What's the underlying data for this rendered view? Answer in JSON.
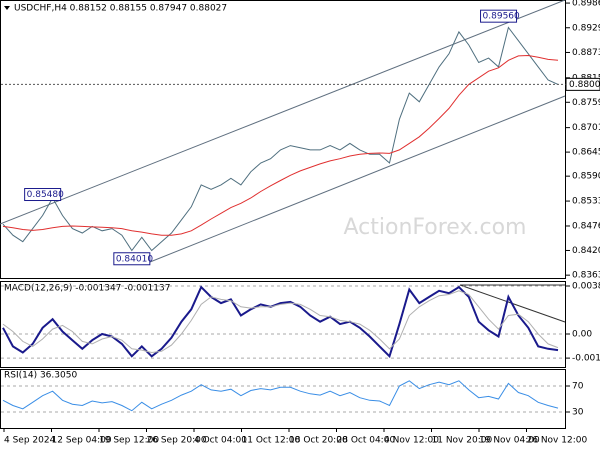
{
  "chart_data": [
    {
      "type": "line",
      "title": "USDCHF,H4  0.88152 0.88155 0.87947 0.88027",
      "watermark": "ActionForex.com",
      "x_labels": [
        "4 Sep 2024",
        "12 Sep 04:00",
        "19 Sep 12:00",
        "26 Sep 20:00",
        "4 Oct 04:00",
        "11 Oct 12:00",
        "18 Oct 20:00",
        "28 Oct 04:00",
        "4 Nov 12:00",
        "11 Nov 20:00",
        "19 Nov 04:00",
        "26 Nov 12:00"
      ],
      "ylim": [
        0.8357,
        0.8993
      ],
      "yticks": [
        {
          "value": 0.8986,
          "label": "0.89860"
        },
        0.89295,
        {
          "value": 0.8873,
          "label": "0.88730"
        },
        {
          "value": 0.8815,
          "label": "0.88150"
        },
        {
          "value": 0.8759,
          "label": "0.87590"
        },
        {
          "value": 0.8701,
          "label": "0.87010"
        },
        {
          "value": 0.8645,
          "label": "0.86450"
        },
        {
          "value": 0.859,
          "label": "0.85900"
        },
        {
          "value": 0.8533,
          "label": "0.85330"
        },
        {
          "value": 0.8476,
          "label": "0.84760"
        },
        {
          "value": 0.842,
          "label": "0.84200"
        },
        0.83635
      ],
      "current": {
        "value": 0.88,
        "label": "0.88000"
      },
      "annotations": [
        {
          "value": 0.8548,
          "label": "0.85480",
          "index": 4
        },
        {
          "value": 0.8401,
          "label": "0.84010",
          "index": 13
        },
        {
          "value": 0.8956,
          "label": "0.89560",
          "index": 50
        }
      ],
      "series": [
        {
          "name": "USDCHF",
          "color": "#4f6f7f",
          "values": [
            0.848,
            0.8455,
            0.844,
            0.847,
            0.85,
            0.854,
            0.85,
            0.847,
            0.846,
            0.8475,
            0.8465,
            0.847,
            0.8455,
            0.842,
            0.845,
            0.842,
            0.844,
            0.846,
            0.849,
            0.852,
            0.857,
            0.856,
            0.857,
            0.8585,
            0.857,
            0.86,
            0.862,
            0.863,
            0.865,
            0.866,
            0.8655,
            0.865,
            0.865,
            0.866,
            0.865,
            0.8665,
            0.865,
            0.864,
            0.864,
            0.862,
            0.872,
            0.878,
            0.876,
            0.88,
            0.884,
            0.887,
            0.892,
            0.889,
            0.885,
            0.886,
            0.884,
            0.893,
            0.89,
            0.887,
            0.884,
            0.881,
            0.88
          ]
        },
        {
          "name": "MA",
          "color": "#e03030",
          "values": [
            0.8475,
            0.8472,
            0.8468,
            0.8466,
            0.8468,
            0.8472,
            0.8475,
            0.8476,
            0.8475,
            0.8474,
            0.8473,
            0.8472,
            0.847,
            0.8465,
            0.8462,
            0.8458,
            0.8455,
            0.8455,
            0.8458,
            0.8465,
            0.8478,
            0.8492,
            0.8505,
            0.8518,
            0.8528,
            0.854,
            0.8555,
            0.8568,
            0.858,
            0.8592,
            0.8602,
            0.861,
            0.8618,
            0.8625,
            0.863,
            0.8636,
            0.864,
            0.8642,
            0.8643,
            0.8642,
            0.865,
            0.8665,
            0.868,
            0.87,
            0.8722,
            0.8745,
            0.8775,
            0.88,
            0.8815,
            0.883,
            0.8838,
            0.8855,
            0.8865,
            0.8866,
            0.8862,
            0.8857,
            0.8855
          ]
        }
      ]
    },
    {
      "type": "line",
      "title": "MACD(12,26,9) -0.001347 -0.001137",
      "ylim": [
        -0.00267,
        0.00421
      ],
      "yticks": [
        0.003886,
        {
          "value": 0,
          "label": "0.00"
        },
        -0.00195
      ],
      "series": [
        {
          "name": "MACD",
          "color": "#1a1a8c",
          "values": [
            0.0005,
            -0.001,
            -0.0015,
            -0.0008,
            0.0005,
            0.0012,
            0.0002,
            -0.0005,
            -0.0012,
            -0.0005,
            0,
            -0.0002,
            -0.0008,
            -0.0018,
            -0.001,
            -0.0018,
            -0.0012,
            -0.0003,
            0.001,
            0.002,
            0.0038,
            0.003,
            0.0025,
            0.0028,
            0.0015,
            0.002,
            0.0024,
            0.0022,
            0.0025,
            0.0026,
            0.0022,
            0.0015,
            0.001,
            0.0014,
            0.0008,
            0.001,
            0.0005,
            -0.0002,
            -0.001,
            -0.0018,
            0.0008,
            0.0036,
            0.0025,
            0.003,
            0.0035,
            0.0033,
            0.0038,
            0.003,
            0.001,
            0.0003,
            -0.0002,
            0.003,
            0.0015,
            0.0005,
            -0.001,
            -0.0012,
            -0.0013
          ]
        },
        {
          "name": "Signal",
          "color": "#b0b0b0",
          "values": [
            0.0008,
            0.0002,
            -0.0006,
            -0.001,
            -0.0004,
            0.0004,
            0.0007,
            0.0002,
            -0.0006,
            -0.0008,
            -0.0004,
            -0.0002,
            -0.0005,
            -0.0012,
            -0.0013,
            -0.0015,
            -0.0014,
            -0.0009,
            0,
            0.0011,
            0.0024,
            0.003,
            0.0028,
            0.0027,
            0.0022,
            0.0021,
            0.0022,
            0.0022,
            0.0024,
            0.0025,
            0.0024,
            0.002,
            0.0015,
            0.0014,
            0.0011,
            0.001,
            0.0008,
            0.0003,
            -0.0004,
            -0.0012,
            -0.0004,
            0.0015,
            0.0022,
            0.0027,
            0.0031,
            0.0032,
            0.0035,
            0.0032,
            0.0022,
            0.0012,
            0.0004,
            0.0015,
            0.0016,
            0.001,
            0,
            -0.0008,
            -0.0011
          ]
        }
      ]
    },
    {
      "type": "line",
      "title": "RSI(14) 36.3050",
      "ylim": [
        5.4,
        94.6
      ],
      "yticks": [
        70,
        30
      ],
      "series": [
        {
          "name": "RSI",
          "color": "#3a8ee6",
          "values": [
            48,
            40,
            35,
            45,
            55,
            62,
            48,
            42,
            40,
            47,
            44,
            46,
            40,
            32,
            45,
            35,
            42,
            48,
            56,
            62,
            72,
            64,
            62,
            65,
            55,
            63,
            66,
            64,
            68,
            68,
            62,
            58,
            56,
            62,
            55,
            60,
            52,
            48,
            47,
            40,
            70,
            78,
            66,
            72,
            76,
            72,
            78,
            64,
            52,
            54,
            50,
            74,
            60,
            55,
            45,
            40,
            36
          ]
        }
      ]
    }
  ]
}
